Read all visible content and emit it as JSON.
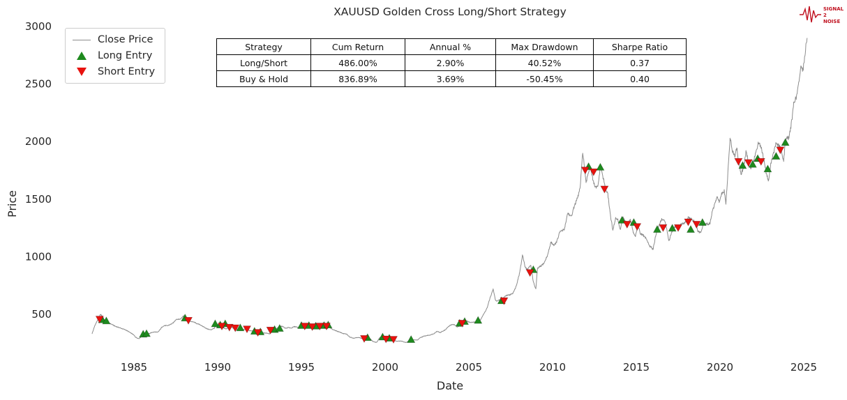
{
  "title": "XAUUSD Golden Cross Long/Short Strategy",
  "colors": {
    "long_green": "#1e8a1e",
    "short_red": "#e8120e",
    "close_line": "#8c8c8c"
  },
  "legend": {
    "items": [
      {
        "label": "Close Price",
        "marker": "line"
      },
      {
        "label": "Long Entry",
        "marker": "triangle-up"
      },
      {
        "label": "Short Entry",
        "marker": "triangle-down"
      }
    ]
  },
  "stats_table": {
    "headers": [
      "Strategy",
      "Cum Return",
      "Annual %",
      "Max Drawdown",
      "Sharpe Ratio"
    ],
    "rows": [
      [
        "Long/Short",
        "486.00%",
        "2.90%",
        "40.52%",
        "0.37"
      ],
      [
        "Buy & Hold",
        "836.89%",
        "3.69%",
        "-50.45%",
        "0.40"
      ]
    ]
  },
  "logo": {
    "line1": "SIGNAL",
    "line2": "2",
    "line3": "NOISE"
  },
  "chart_data": {
    "type": "line",
    "title": "XAUUSD Golden Cross Long/Short Strategy",
    "xlabel": "Date",
    "ylabel": "Price",
    "xlim": [
      1982,
      2026
    ],
    "ylim": [
      250,
      3000
    ],
    "x_ticks": [
      1985,
      1990,
      1995,
      2000,
      2005,
      2010,
      2015,
      2020,
      2025
    ],
    "y_ticks": [
      500,
      1000,
      1500,
      2000,
      2500,
      3000
    ],
    "grid": false,
    "legend_position": "upper-left",
    "series": [
      {
        "name": "Close Price",
        "points": [
          [
            1982.5,
            335
          ],
          [
            1982.65,
            395
          ],
          [
            1982.8,
            440
          ],
          [
            1983.0,
            500
          ],
          [
            1983.15,
            480
          ],
          [
            1983.3,
            430
          ],
          [
            1983.5,
            420
          ],
          [
            1983.7,
            410
          ],
          [
            1983.9,
            395
          ],
          [
            1984.1,
            385
          ],
          [
            1984.3,
            380
          ],
          [
            1984.6,
            355
          ],
          [
            1984.9,
            330
          ],
          [
            1985.1,
            300
          ],
          [
            1985.3,
            290
          ],
          [
            1985.5,
            315
          ],
          [
            1985.7,
            325
          ],
          [
            1985.9,
            330
          ],
          [
            1986.1,
            340
          ],
          [
            1986.4,
            345
          ],
          [
            1986.7,
            390
          ],
          [
            1986.9,
            400
          ],
          [
            1987.2,
            410
          ],
          [
            1987.5,
            450
          ],
          [
            1987.8,
            465
          ],
          [
            1987.95,
            490
          ],
          [
            1988.1,
            470
          ],
          [
            1988.3,
            445
          ],
          [
            1988.5,
            435
          ],
          [
            1988.7,
            425
          ],
          [
            1988.9,
            415
          ],
          [
            1989.1,
            390
          ],
          [
            1989.3,
            380
          ],
          [
            1989.6,
            365
          ],
          [
            1989.8,
            375
          ],
          [
            1989.95,
            410
          ],
          [
            1990.1,
            405
          ],
          [
            1990.3,
            390
          ],
          [
            1990.5,
            370
          ],
          [
            1990.7,
            390
          ],
          [
            1990.9,
            385
          ],
          [
            1991.1,
            375
          ],
          [
            1991.3,
            360
          ],
          [
            1991.5,
            365
          ],
          [
            1991.7,
            370
          ],
          [
            1991.9,
            360
          ],
          [
            1992.1,
            355
          ],
          [
            1992.3,
            340
          ],
          [
            1992.5,
            350
          ],
          [
            1992.7,
            340
          ],
          [
            1992.9,
            335
          ],
          [
            1993.1,
            330
          ],
          [
            1993.3,
            360
          ],
          [
            1993.5,
            375
          ],
          [
            1993.7,
            390
          ],
          [
            1993.9,
            390
          ],
          [
            1994.1,
            380
          ],
          [
            1994.3,
            385
          ],
          [
            1994.5,
            385
          ],
          [
            1994.7,
            390
          ],
          [
            1994.9,
            380
          ],
          [
            1995.1,
            385
          ],
          [
            1995.3,
            390
          ],
          [
            1995.5,
            385
          ],
          [
            1995.7,
            385
          ],
          [
            1995.9,
            390
          ],
          [
            1996.1,
            405
          ],
          [
            1996.3,
            400
          ],
          [
            1996.5,
            395
          ],
          [
            1996.7,
            385
          ],
          [
            1996.9,
            370
          ],
          [
            1997.1,
            355
          ],
          [
            1997.3,
            345
          ],
          [
            1997.5,
            330
          ],
          [
            1997.7,
            325
          ],
          [
            1997.9,
            300
          ],
          [
            1998.1,
            295
          ],
          [
            1998.3,
            300
          ],
          [
            1998.5,
            295
          ],
          [
            1998.7,
            290
          ],
          [
            1998.9,
            290
          ],
          [
            1999.1,
            285
          ],
          [
            1999.3,
            260
          ],
          [
            1999.5,
            255
          ],
          [
            1999.7,
            300
          ],
          [
            1999.9,
            290
          ],
          [
            2000.1,
            285
          ],
          [
            2000.3,
            280
          ],
          [
            2000.5,
            275
          ],
          [
            2000.7,
            270
          ],
          [
            2000.9,
            268
          ],
          [
            2001.1,
            260
          ],
          [
            2001.3,
            258
          ],
          [
            2001.5,
            270
          ],
          [
            2001.7,
            275
          ],
          [
            2001.9,
            278
          ],
          [
            2002.1,
            295
          ],
          [
            2002.3,
            305
          ],
          [
            2002.5,
            315
          ],
          [
            2002.7,
            320
          ],
          [
            2002.9,
            330
          ],
          [
            2003.1,
            350
          ],
          [
            2003.3,
            335
          ],
          [
            2003.5,
            360
          ],
          [
            2003.7,
            380
          ],
          [
            2003.9,
            400
          ],
          [
            2004.1,
            415
          ],
          [
            2004.3,
            395
          ],
          [
            2004.5,
            390
          ],
          [
            2004.7,
            420
          ],
          [
            2004.9,
            440
          ],
          [
            2005.1,
            425
          ],
          [
            2005.3,
            430
          ],
          [
            2005.5,
            435
          ],
          [
            2005.7,
            460
          ],
          [
            2005.9,
            510
          ],
          [
            2006.1,
            560
          ],
          [
            2006.3,
            650
          ],
          [
            2006.45,
            720
          ],
          [
            2006.6,
            620
          ],
          [
            2006.8,
            630
          ],
          [
            2007.0,
            640
          ],
          [
            2007.2,
            660
          ],
          [
            2007.4,
            670
          ],
          [
            2007.6,
            680
          ],
          [
            2007.8,
            740
          ],
          [
            2008.0,
            850
          ],
          [
            2008.2,
            1000
          ],
          [
            2008.35,
            920
          ],
          [
            2008.5,
            900
          ],
          [
            2008.7,
            930
          ],
          [
            2008.85,
            780
          ],
          [
            2009.0,
            720
          ],
          [
            2009.1,
            900
          ],
          [
            2009.3,
            930
          ],
          [
            2009.5,
            950
          ],
          [
            2009.7,
            1000
          ],
          [
            2009.9,
            1130
          ],
          [
            2010.1,
            1110
          ],
          [
            2010.3,
            1150
          ],
          [
            2010.5,
            1220
          ],
          [
            2010.7,
            1250
          ],
          [
            2010.9,
            1380
          ],
          [
            2011.1,
            1360
          ],
          [
            2011.3,
            1440
          ],
          [
            2011.5,
            1520
          ],
          [
            2011.65,
            1620
          ],
          [
            2011.8,
            1900
          ],
          [
            2011.9,
            1780
          ],
          [
            2012.0,
            1650
          ],
          [
            2012.1,
            1720
          ],
          [
            2012.25,
            1780
          ],
          [
            2012.4,
            1650
          ],
          [
            2012.55,
            1580
          ],
          [
            2012.7,
            1620
          ],
          [
            2012.85,
            1770
          ],
          [
            2013.0,
            1680
          ],
          [
            2013.15,
            1600
          ],
          [
            2013.3,
            1560
          ],
          [
            2013.45,
            1380
          ],
          [
            2013.6,
            1230
          ],
          [
            2013.75,
            1320
          ],
          [
            2013.9,
            1330
          ],
          [
            2014.05,
            1240
          ],
          [
            2014.2,
            1330
          ],
          [
            2014.35,
            1290
          ],
          [
            2014.5,
            1300
          ],
          [
            2014.65,
            1320
          ],
          [
            2014.8,
            1230
          ],
          [
            2014.95,
            1190
          ],
          [
            2015.1,
            1290
          ],
          [
            2015.25,
            1200
          ],
          [
            2015.4,
            1180
          ],
          [
            2015.55,
            1160
          ],
          [
            2015.7,
            1130
          ],
          [
            2015.85,
            1080
          ],
          [
            2016.0,
            1060
          ],
          [
            2016.15,
            1180
          ],
          [
            2016.3,
            1240
          ],
          [
            2016.5,
            1320
          ],
          [
            2016.65,
            1340
          ],
          [
            2016.8,
            1250
          ],
          [
            2016.95,
            1130
          ],
          [
            2017.1,
            1200
          ],
          [
            2017.3,
            1250
          ],
          [
            2017.5,
            1240
          ],
          [
            2017.7,
            1280
          ],
          [
            2017.9,
            1280
          ],
          [
            2018.1,
            1340
          ],
          [
            2018.3,
            1330
          ],
          [
            2018.5,
            1290
          ],
          [
            2018.7,
            1210
          ],
          [
            2018.85,
            1190
          ],
          [
            2019.0,
            1280
          ],
          [
            2019.2,
            1300
          ],
          [
            2019.4,
            1290
          ],
          [
            2019.6,
            1410
          ],
          [
            2019.8,
            1500
          ],
          [
            2019.95,
            1480
          ],
          [
            2020.1,
            1570
          ],
          [
            2020.25,
            1590
          ],
          [
            2020.35,
            1480
          ],
          [
            2020.45,
            1700
          ],
          [
            2020.6,
            2060
          ],
          [
            2020.75,
            1930
          ],
          [
            2020.9,
            1870
          ],
          [
            2021.0,
            1950
          ],
          [
            2021.1,
            1830
          ],
          [
            2021.25,
            1720
          ],
          [
            2021.4,
            1780
          ],
          [
            2021.55,
            1900
          ],
          [
            2021.7,
            1800
          ],
          [
            2021.85,
            1790
          ],
          [
            2022.0,
            1810
          ],
          [
            2022.15,
            1900
          ],
          [
            2022.3,
            1970
          ],
          [
            2022.45,
            1930
          ],
          [
            2022.6,
            1840
          ],
          [
            2022.75,
            1720
          ],
          [
            2022.9,
            1650
          ],
          [
            2023.05,
            1830
          ],
          [
            2023.2,
            1900
          ],
          [
            2023.35,
            1990
          ],
          [
            2023.5,
            1960
          ],
          [
            2023.65,
            1920
          ],
          [
            2023.8,
            1850
          ],
          [
            2023.9,
            1990
          ],
          [
            2024.0,
            2040
          ],
          [
            2024.1,
            2030
          ],
          [
            2024.25,
            2160
          ],
          [
            2024.4,
            2330
          ],
          [
            2024.55,
            2360
          ],
          [
            2024.7,
            2500
          ],
          [
            2024.85,
            2650
          ],
          [
            2024.95,
            2620
          ],
          [
            2025.05,
            2750
          ],
          [
            2025.15,
            2880
          ],
          [
            2025.2,
            2900
          ]
        ]
      }
    ],
    "long_entries": [
      [
        1983.1,
        450
      ],
      [
        1983.35,
        440
      ],
      [
        1985.55,
        325
      ],
      [
        1985.75,
        330
      ],
      [
        1988.05,
        465
      ],
      [
        1989.85,
        415
      ],
      [
        1990.15,
        405
      ],
      [
        1990.45,
        415
      ],
      [
        1991.35,
        380
      ],
      [
        1992.2,
        350
      ],
      [
        1992.55,
        345
      ],
      [
        1993.4,
        365
      ],
      [
        1993.7,
        375
      ],
      [
        1995.0,
        400
      ],
      [
        1995.45,
        400
      ],
      [
        1995.85,
        395
      ],
      [
        1996.35,
        400
      ],
      [
        1996.6,
        405
      ],
      [
        1998.95,
        295
      ],
      [
        1999.85,
        300
      ],
      [
        2000.25,
        290
      ],
      [
        2001.55,
        278
      ],
      [
        2004.45,
        420
      ],
      [
        2004.75,
        435
      ],
      [
        2005.55,
        445
      ],
      [
        2006.95,
        615
      ],
      [
        2008.85,
        885
      ],
      [
        2012.15,
        1780
      ],
      [
        2012.85,
        1775
      ],
      [
        2014.15,
        1315
      ],
      [
        2014.85,
        1295
      ],
      [
        2016.25,
        1235
      ],
      [
        2017.15,
        1245
      ],
      [
        2018.25,
        1235
      ],
      [
        2018.95,
        1295
      ],
      [
        2021.35,
        1790
      ],
      [
        2021.95,
        1800
      ],
      [
        2022.25,
        1850
      ],
      [
        2022.85,
        1760
      ],
      [
        2023.35,
        1870
      ],
      [
        2023.9,
        1990
      ]
    ],
    "short_entries": [
      [
        1982.95,
        460
      ],
      [
        1988.25,
        450
      ],
      [
        1990.25,
        400
      ],
      [
        1990.7,
        390
      ],
      [
        1991.05,
        385
      ],
      [
        1991.75,
        375
      ],
      [
        1992.4,
        345
      ],
      [
        1993.15,
        365
      ],
      [
        1995.2,
        400
      ],
      [
        1995.65,
        395
      ],
      [
        1996.1,
        400
      ],
      [
        1996.5,
        400
      ],
      [
        1998.75,
        292
      ],
      [
        2000.05,
        288
      ],
      [
        2000.5,
        285
      ],
      [
        2004.6,
        425
      ],
      [
        2007.1,
        620
      ],
      [
        2008.65,
        865
      ],
      [
        2011.95,
        1755
      ],
      [
        2012.45,
        1740
      ],
      [
        2013.1,
        1590
      ],
      [
        2014.45,
        1285
      ],
      [
        2015.05,
        1265
      ],
      [
        2016.6,
        1255
      ],
      [
        2017.5,
        1255
      ],
      [
        2018.1,
        1305
      ],
      [
        2018.6,
        1285
      ],
      [
        2021.1,
        1830
      ],
      [
        2021.7,
        1820
      ],
      [
        2022.45,
        1830
      ],
      [
        2023.6,
        1930
      ]
    ]
  }
}
